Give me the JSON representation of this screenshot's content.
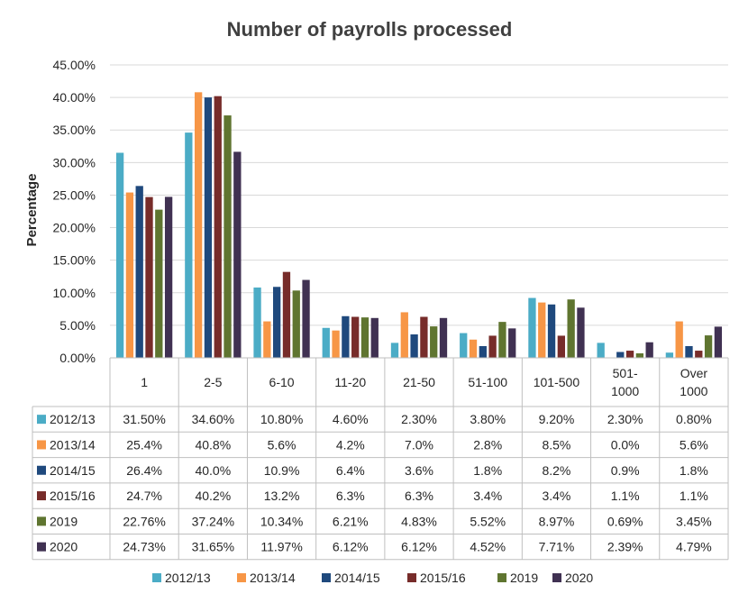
{
  "colors": {
    "2012/13": "#4bacc6",
    "2013/14": "#f79646",
    "2014/15": "#1f497d",
    "2015/16": "#772c2a",
    "2019": "#5f7530",
    "2020": "#403152",
    "grid": "#d9d9d9",
    "table_border": "#bfbfbf"
  },
  "chart_data": {
    "type": "bar",
    "title": "Number of payrolls processed",
    "ylabel": "Percentage",
    "xlabel": "",
    "ylim": [
      0,
      45
    ],
    "y_ticks": [
      "0.00%",
      "5.00%",
      "10.00%",
      "15.00%",
      "20.00%",
      "25.00%",
      "30.00%",
      "35.00%",
      "40.00%",
      "45.00%"
    ],
    "grid": true,
    "legend_position": "bottom",
    "categories": [
      [
        "1"
      ],
      [
        "2-5"
      ],
      [
        "6-10"
      ],
      [
        "11-20"
      ],
      [
        "21-50"
      ],
      [
        "51-100"
      ],
      [
        "101-500"
      ],
      [
        "501-",
        "1000"
      ],
      [
        "Over",
        "1000"
      ]
    ],
    "series": [
      {
        "name": "2012/13",
        "values": [
          31.5,
          34.6,
          10.8,
          4.6,
          2.3,
          3.8,
          9.2,
          2.3,
          0.8
        ],
        "labels": [
          "31.50%",
          "34.60%",
          "10.80%",
          "4.60%",
          "2.30%",
          "3.80%",
          "9.20%",
          "2.30%",
          "0.80%"
        ]
      },
      {
        "name": "2013/14",
        "values": [
          25.4,
          40.8,
          5.6,
          4.2,
          7.0,
          2.8,
          8.5,
          0.0,
          5.6
        ],
        "labels": [
          "25.4%",
          "40.8%",
          "5.6%",
          "4.2%",
          "7.0%",
          "2.8%",
          "8.5%",
          "0.0%",
          "5.6%"
        ]
      },
      {
        "name": "2014/15",
        "values": [
          26.4,
          40.0,
          10.9,
          6.4,
          3.6,
          1.8,
          8.2,
          0.9,
          1.8
        ],
        "labels": [
          "26.4%",
          "40.0%",
          "10.9%",
          "6.4%",
          "3.6%",
          "1.8%",
          "8.2%",
          "0.9%",
          "1.8%"
        ]
      },
      {
        "name": "2015/16",
        "values": [
          24.7,
          40.2,
          13.2,
          6.3,
          6.3,
          3.4,
          3.4,
          1.1,
          1.1
        ],
        "labels": [
          "24.7%",
          "40.2%",
          "13.2%",
          "6.3%",
          "6.3%",
          "3.4%",
          "3.4%",
          "1.1%",
          "1.1%"
        ]
      },
      {
        "name": "2019",
        "values": [
          22.76,
          37.24,
          10.34,
          6.21,
          4.83,
          5.52,
          8.97,
          0.69,
          3.45
        ],
        "labels": [
          "22.76%",
          "37.24%",
          "10.34%",
          "6.21%",
          "4.83%",
          "5.52%",
          "8.97%",
          "0.69%",
          "3.45%"
        ]
      },
      {
        "name": "2020",
        "values": [
          24.73,
          31.65,
          11.97,
          6.12,
          6.12,
          4.52,
          7.71,
          2.39,
          4.79
        ],
        "labels": [
          "24.73%",
          "31.65%",
          "11.97%",
          "6.12%",
          "6.12%",
          "4.52%",
          "7.71%",
          "2.39%",
          "4.79%"
        ]
      }
    ]
  }
}
